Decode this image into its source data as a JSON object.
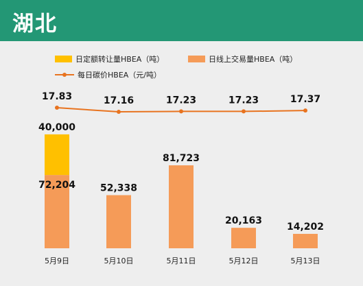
{
  "header": {
    "title": "湖北",
    "bg_color": "#239775"
  },
  "legend": {
    "quota": "日定额转让量HBEA（吨）",
    "online": "日线上交易量HBEA（吨）",
    "price": "每日碳价HBEA（元/吨）"
  },
  "colors": {
    "quota": "#ffc000",
    "online": "#f59b58",
    "price": "#e8731f"
  },
  "chart_data": {
    "type": "bar",
    "categories": [
      "5月9日",
      "5月10日",
      "5月11日",
      "5月12日",
      "5月13日"
    ],
    "series": [
      {
        "name": "日线上交易量HBEA（吨）",
        "values": [
          72204,
          52338,
          81723,
          20163,
          14202
        ],
        "labels": [
          "72,204",
          "52,338",
          "81,723",
          "20,163",
          "14,202"
        ]
      },
      {
        "name": "日定额转让量HBEA（吨）",
        "values": [
          40000,
          0,
          0,
          0,
          0
        ],
        "labels": [
          "40,000",
          "",
          "",
          "",
          ""
        ]
      },
      {
        "name": "每日碳价HBEA（元/吨）",
        "type": "line",
        "values": [
          17.83,
          17.16,
          17.23,
          17.23,
          17.37
        ],
        "labels": [
          "17.83",
          "17.16",
          "17.23",
          "17.23",
          "17.37"
        ]
      }
    ],
    "stacked": true,
    "legend_position": "top",
    "grid": false
  }
}
